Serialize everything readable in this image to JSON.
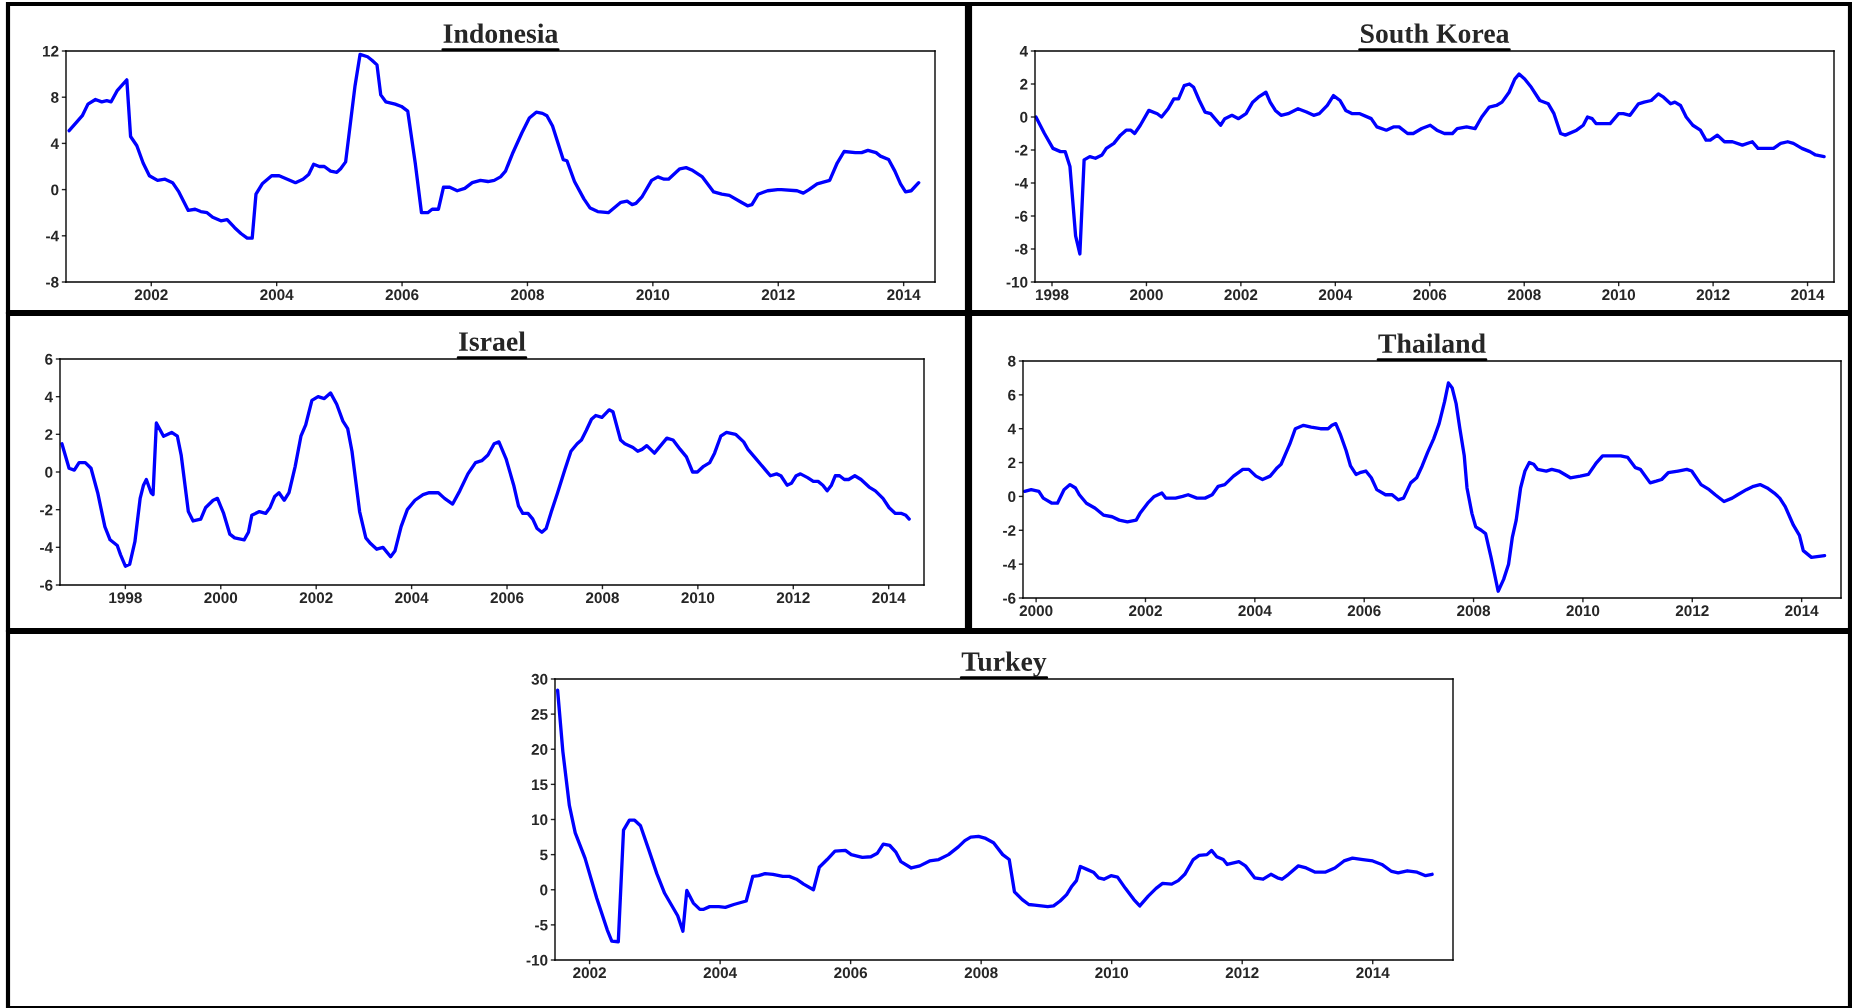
{
  "chart_data": [
    {
      "type": "line",
      "title": "Indonesia",
      "xlim": [
        2000.64,
        2014.5
      ],
      "ylim": [
        -8,
        12
      ],
      "xticks": [
        2002,
        2004,
        2006,
        2008,
        2010,
        2012,
        2014
      ],
      "yticks": [
        -8,
        -4,
        0,
        4,
        8,
        12
      ],
      "grid": false,
      "legend": false,
      "series": [
        {
          "color": "#0000ff",
          "x": [
            2000.69,
            2000.82,
            2000.9,
            2000.99,
            2001.11,
            2001.21,
            2001.29,
            2001.36,
            2001.46,
            2001.61,
            2001.67,
            2001.77,
            2001.87,
            2001.97,
            2002.1,
            2002.22,
            2002.34,
            2002.44,
            2002.59,
            2002.7,
            2002.79,
            2002.89,
            2002.98,
            2003.11,
            2003.21,
            2003.33,
            2003.43,
            2003.53,
            2003.61,
            2003.67,
            2003.77,
            2003.92,
            2004.04,
            2004.17,
            2004.3,
            2004.42,
            2004.51,
            2004.59,
            2004.68,
            2004.76,
            2004.86,
            2004.96,
            2005.02,
            2005.1,
            2005.25,
            2005.33,
            2005.45,
            2005.52,
            2005.6,
            2005.66,
            2005.74,
            2005.89,
            2005.99,
            2006.09,
            2006.21,
            2006.31,
            2006.41,
            2006.48,
            2006.58,
            2006.66,
            2006.76,
            2006.88,
            2007.0,
            2007.12,
            2007.25,
            2007.37,
            2007.47,
            2007.57,
            2007.65,
            2007.76,
            2007.91,
            2008.03,
            2008.14,
            2008.24,
            2008.31,
            2008.4,
            2008.57,
            2008.63,
            2008.75,
            2008.9,
            2009.0,
            2009.12,
            2009.29,
            2009.49,
            2009.59,
            2009.67,
            2009.73,
            2009.83,
            2009.98,
            2010.08,
            2010.18,
            2010.25,
            2010.43,
            2010.53,
            2010.62,
            2010.79,
            2010.97,
            2011.1,
            2011.22,
            2011.41,
            2011.51,
            2011.58,
            2011.68,
            2011.83,
            2011.99,
            2012.05,
            2012.3,
            2012.4,
            2012.49,
            2012.62,
            2012.82,
            2012.94,
            2013.05,
            2013.23,
            2013.33,
            2013.43,
            2013.56,
            2013.63,
            2013.76,
            2013.86,
            2013.95,
            2014.03,
            2014.12,
            2014.24
          ],
          "values": [
            5.1,
            5.9,
            6.4,
            7.4,
            7.8,
            7.6,
            7.7,
            7.6,
            8.6,
            9.5,
            4.6,
            3.8,
            2.3,
            1.2,
            0.8,
            0.9,
            0.6,
            -0.2,
            -1.8,
            -1.7,
            -1.9,
            -2.0,
            -2.4,
            -2.7,
            -2.6,
            -3.3,
            -3.8,
            -4.2,
            -4.2,
            -0.4,
            0.5,
            1.2,
            1.2,
            0.9,
            0.6,
            0.9,
            1.3,
            2.2,
            2.0,
            2.0,
            1.6,
            1.5,
            1.8,
            2.4,
            9.0,
            11.7,
            11.5,
            11.2,
            10.8,
            8.2,
            7.6,
            7.4,
            7.2,
            6.8,
            2.3,
            -2.0,
            -2.0,
            -1.7,
            -1.7,
            0.2,
            0.2,
            -0.1,
            0.1,
            0.6,
            0.8,
            0.7,
            0.8,
            1.1,
            1.6,
            3.1,
            4.9,
            6.2,
            6.7,
            6.6,
            6.4,
            5.5,
            2.6,
            2.5,
            0.7,
            -0.8,
            -1.6,
            -1.9,
            -2.0,
            -1.1,
            -1.0,
            -1.3,
            -1.2,
            -0.6,
            0.8,
            1.1,
            0.9,
            0.9,
            1.8,
            1.9,
            1.7,
            1.1,
            -0.2,
            -0.4,
            -0.5,
            -1.1,
            -1.4,
            -1.3,
            -0.4,
            -0.1,
            0.0,
            0.0,
            -0.1,
            -0.3,
            0.0,
            0.5,
            0.8,
            2.3,
            3.3,
            3.2,
            3.2,
            3.4,
            3.2,
            2.9,
            2.6,
            1.6,
            0.5,
            -0.2,
            -0.1,
            0.6
          ]
        }
      ]
    },
    {
      "type": "line",
      "title": "South Korea",
      "xlim": [
        1997.64,
        2014.56
      ],
      "ylim": [
        -10,
        4
      ],
      "xticks": [
        1998,
        2000,
        2002,
        2004,
        2006,
        2008,
        2010,
        2012,
        2014
      ],
      "yticks": [
        -10,
        -8,
        -6,
        -4,
        -2,
        0,
        2,
        4
      ],
      "grid": false,
      "legend": false,
      "series": [
        {
          "color": "#0000ff",
          "x": [
            1997.66,
            1997.84,
            1998.02,
            1998.18,
            1998.28,
            1998.38,
            1998.5,
            1998.59,
            1998.68,
            1998.8,
            1998.92,
            1999.06,
            1999.15,
            1999.31,
            1999.45,
            1999.57,
            1999.67,
            1999.75,
            1999.87,
            2000.05,
            2000.23,
            2000.32,
            2000.46,
            2000.58,
            2000.68,
            2000.8,
            2000.91,
            2001.0,
            2001.12,
            2001.24,
            2001.36,
            2001.57,
            2001.66,
            2001.81,
            2001.95,
            2002.11,
            2002.25,
            2002.37,
            2002.53,
            2002.62,
            2002.73,
            2002.85,
            2003.0,
            2003.21,
            2003.39,
            2003.54,
            2003.66,
            2003.83,
            2003.96,
            2004.1,
            2004.22,
            2004.36,
            2004.52,
            2004.76,
            2004.88,
            2005.08,
            2005.23,
            2005.35,
            2005.53,
            2005.65,
            2005.83,
            2006.01,
            2006.15,
            2006.31,
            2006.48,
            2006.58,
            2006.78,
            2006.96,
            2007.1,
            2007.26,
            2007.41,
            2007.53,
            2007.68,
            2007.8,
            2007.89,
            2008.01,
            2008.15,
            2008.33,
            2008.51,
            2008.63,
            2008.77,
            2008.87,
            2009.11,
            2009.25,
            2009.34,
            2009.44,
            2009.52,
            2009.64,
            2009.82,
            2010.0,
            2010.1,
            2010.24,
            2010.42,
            2010.54,
            2010.69,
            2010.84,
            2010.95,
            2011.1,
            2011.19,
            2011.31,
            2011.43,
            2011.57,
            2011.73,
            2011.85,
            2011.94,
            2012.09,
            2012.24,
            2012.41,
            2012.62,
            2012.83,
            2012.95,
            2013.1,
            2013.28,
            2013.43,
            2013.58,
            2013.7,
            2013.88,
            2014.05,
            2014.17,
            2014.35
          ],
          "values": [
            0.0,
            -1.0,
            -1.9,
            -2.1,
            -2.1,
            -3.0,
            -7.2,
            -8.3,
            -2.6,
            -2.4,
            -2.5,
            -2.3,
            -1.9,
            -1.6,
            -1.1,
            -0.8,
            -0.8,
            -1.0,
            -0.5,
            0.4,
            0.2,
            0.0,
            0.5,
            1.1,
            1.1,
            1.9,
            2.0,
            1.8,
            1.0,
            0.3,
            0.2,
            -0.5,
            -0.1,
            0.1,
            -0.1,
            0.2,
            0.9,
            1.2,
            1.5,
            0.9,
            0.4,
            0.1,
            0.2,
            0.5,
            0.3,
            0.1,
            0.2,
            0.7,
            1.3,
            1.0,
            0.4,
            0.2,
            0.2,
            -0.1,
            -0.6,
            -0.8,
            -0.6,
            -0.6,
            -1.0,
            -1.0,
            -0.7,
            -0.5,
            -0.8,
            -1.0,
            -1.0,
            -0.7,
            -0.6,
            -0.7,
            0.0,
            0.6,
            0.7,
            0.9,
            1.5,
            2.3,
            2.6,
            2.3,
            1.8,
            1.0,
            0.8,
            0.2,
            -1.0,
            -1.1,
            -0.8,
            -0.5,
            0.0,
            -0.1,
            -0.4,
            -0.4,
            -0.4,
            0.2,
            0.2,
            0.1,
            0.8,
            0.9,
            1.0,
            1.4,
            1.2,
            0.8,
            0.9,
            0.7,
            0.0,
            -0.5,
            -0.8,
            -1.4,
            -1.4,
            -1.1,
            -1.5,
            -1.5,
            -1.7,
            -1.5,
            -1.9,
            -1.9,
            -1.9,
            -1.6,
            -1.5,
            -1.6,
            -1.9,
            -2.1,
            -2.3,
            -2.4
          ]
        }
      ]
    },
    {
      "type": "line",
      "title": "Israel",
      "xlim": [
        1996.63,
        2014.74
      ],
      "ylim": [
        -6,
        6
      ],
      "xticks": [
        1998,
        2000,
        2002,
        2004,
        2006,
        2008,
        2010,
        2012,
        2014
      ],
      "yticks": [
        -6,
        -4,
        -2,
        0,
        2,
        4,
        6
      ],
      "grid": false,
      "legend": false,
      "series": [
        {
          "color": "#0000ff",
          "x": [
            1996.67,
            1996.82,
            1996.93,
            1997.03,
            1997.16,
            1997.28,
            1997.42,
            1997.57,
            1997.68,
            1997.83,
            1997.9,
            1998.0,
            1998.09,
            1998.2,
            1998.31,
            1998.38,
            1998.44,
            1998.54,
            1998.58,
            1998.65,
            1998.8,
            1998.97,
            1999.09,
            1999.17,
            1999.32,
            1999.42,
            1999.58,
            1999.68,
            1999.84,
            1999.93,
            2000.06,
            2000.19,
            2000.29,
            2000.49,
            2000.58,
            2000.65,
            2000.81,
            2000.94,
            2001.03,
            2001.13,
            2001.22,
            2001.33,
            2001.43,
            2001.56,
            2001.68,
            2001.78,
            2001.91,
            2002.04,
            2002.17,
            2002.3,
            2002.43,
            2002.56,
            2002.66,
            2002.75,
            2002.91,
            2003.04,
            2003.14,
            2003.27,
            2003.4,
            2003.56,
            2003.65,
            2003.78,
            2003.91,
            2004.07,
            2004.24,
            2004.37,
            2004.56,
            2004.69,
            2004.86,
            2005.01,
            2005.18,
            2005.34,
            2005.47,
            2005.6,
            2005.73,
            2005.83,
            2005.98,
            2006.14,
            2006.24,
            2006.33,
            2006.44,
            2006.54,
            2006.63,
            2006.73,
            2006.82,
            2006.93,
            2007.06,
            2007.21,
            2007.34,
            2007.47,
            2007.56,
            2007.66,
            2007.77,
            2007.86,
            2007.99,
            2008.14,
            2008.22,
            2008.38,
            2008.47,
            2008.64,
            2008.74,
            2008.83,
            2008.93,
            2009.09,
            2009.22,
            2009.35,
            2009.48,
            2009.63,
            2009.76,
            2009.89,
            2009.99,
            2010.12,
            2010.25,
            2010.35,
            2010.48,
            2010.6,
            2010.79,
            2010.96,
            2011.05,
            2011.22,
            2011.42,
            2011.52,
            2011.65,
            2011.74,
            2011.87,
            2011.96,
            2012.06,
            2012.15,
            2012.3,
            2012.42,
            2012.52,
            2012.62,
            2012.71,
            2012.8,
            2012.88,
            2012.97,
            2013.07,
            2013.16,
            2013.29,
            2013.42,
            2013.59,
            2013.72,
            2013.88,
            2014.01,
            2014.14,
            2014.27,
            2014.36,
            2014.43
          ],
          "values": [
            1.5,
            0.2,
            0.1,
            0.5,
            0.5,
            0.2,
            -1.1,
            -2.9,
            -3.6,
            -3.9,
            -4.4,
            -5.0,
            -4.9,
            -3.7,
            -1.4,
            -0.7,
            -0.4,
            -1.1,
            -1.2,
            2.6,
            1.9,
            2.1,
            1.9,
            0.9,
            -2.1,
            -2.6,
            -2.5,
            -1.9,
            -1.5,
            -1.4,
            -2.2,
            -3.3,
            -3.5,
            -3.6,
            -3.2,
            -2.3,
            -2.1,
            -2.2,
            -1.9,
            -1.3,
            -1.1,
            -1.5,
            -1.1,
            0.3,
            1.9,
            2.5,
            3.8,
            4.0,
            3.9,
            4.2,
            3.6,
            2.7,
            2.3,
            1.1,
            -2.1,
            -3.5,
            -3.8,
            -4.1,
            -4.0,
            -4.5,
            -4.2,
            -2.9,
            -2.0,
            -1.5,
            -1.2,
            -1.1,
            -1.1,
            -1.4,
            -1.7,
            -1.0,
            -0.1,
            0.5,
            0.6,
            0.9,
            1.5,
            1.6,
            0.7,
            -0.7,
            -1.8,
            -2.2,
            -2.2,
            -2.5,
            -3.0,
            -3.2,
            -3.0,
            -2.1,
            -1.1,
            0.1,
            1.1,
            1.5,
            1.7,
            2.2,
            2.8,
            3.0,
            2.9,
            3.3,
            3.2,
            1.7,
            1.5,
            1.3,
            1.1,
            1.2,
            1.4,
            1.0,
            1.4,
            1.8,
            1.7,
            1.2,
            0.8,
            0.0,
            0.0,
            0.3,
            0.5,
            1.0,
            1.9,
            2.1,
            2.0,
            1.6,
            1.2,
            0.7,
            0.1,
            -0.2,
            -0.1,
            -0.2,
            -0.7,
            -0.6,
            -0.2,
            -0.1,
            -0.3,
            -0.5,
            -0.5,
            -0.7,
            -1.0,
            -0.7,
            -0.2,
            -0.2,
            -0.4,
            -0.4,
            -0.2,
            -0.4,
            -0.8,
            -1.0,
            -1.4,
            -1.9,
            -2.2,
            -2.2,
            -2.3,
            -2.5
          ]
        }
      ]
    },
    {
      "type": "line",
      "title": "Thailand",
      "xlim": [
        1999.76,
        2014.72
      ],
      "ylim": [
        -6,
        8
      ],
      "xticks": [
        2000,
        2002,
        2004,
        2006,
        2008,
        2010,
        2012,
        2014
      ],
      "yticks": [
        -6,
        -4,
        -2,
        0,
        2,
        4,
        6,
        8
      ],
      "grid": false,
      "legend": false,
      "series": [
        {
          "color": "#0000ff",
          "x": [
            1999.79,
            1999.91,
            2000.05,
            2000.13,
            2000.29,
            2000.39,
            2000.51,
            2000.62,
            2000.72,
            2000.79,
            2000.92,
            2001.08,
            2001.23,
            2001.39,
            2001.52,
            2001.67,
            2001.83,
            2001.9,
            2002.04,
            2002.16,
            2002.3,
            2002.37,
            2002.55,
            2002.68,
            2002.78,
            2002.94,
            2003.09,
            2003.22,
            2003.33,
            2003.45,
            2003.61,
            2003.78,
            2003.89,
            2004.02,
            2004.14,
            2004.28,
            2004.41,
            2004.48,
            2004.64,
            2004.74,
            2004.89,
            2005.03,
            2005.2,
            2005.34,
            2005.41,
            2005.48,
            2005.56,
            2005.67,
            2005.75,
            2005.85,
            2005.92,
            2006.03,
            2006.13,
            2006.23,
            2006.39,
            2006.51,
            2006.62,
            2006.72,
            2006.85,
            2006.96,
            2007.06,
            2007.16,
            2007.27,
            2007.37,
            2007.47,
            2007.54,
            2007.61,
            2007.68,
            2007.75,
            2007.83,
            2007.88,
            2007.97,
            2008.04,
            2008.14,
            2008.22,
            2008.32,
            2008.45,
            2008.55,
            2008.64,
            2008.71,
            2008.78,
            2008.86,
            2008.94,
            2009.02,
            2009.1,
            2009.17,
            2009.33,
            2009.43,
            2009.56,
            2009.77,
            2009.95,
            2010.1,
            2010.25,
            2010.36,
            2010.51,
            2010.69,
            2010.82,
            2010.96,
            2011.05,
            2011.23,
            2011.34,
            2011.44,
            2011.56,
            2011.74,
            2011.9,
            2011.99,
            2012.16,
            2012.31,
            2012.42,
            2012.58,
            2012.73,
            2012.83,
            2012.99,
            2013.12,
            2013.24,
            2013.37,
            2013.5,
            2013.6,
            2013.7,
            2013.85,
            2013.96,
            2014.03,
            2014.18,
            2014.42
          ],
          "values": [
            0.3,
            0.4,
            0.3,
            -0.1,
            -0.4,
            -0.4,
            0.4,
            0.7,
            0.5,
            0.1,
            -0.4,
            -0.7,
            -1.1,
            -1.2,
            -1.4,
            -1.5,
            -1.4,
            -1.0,
            -0.4,
            0.0,
            0.2,
            -0.1,
            -0.1,
            0.0,
            0.1,
            -0.1,
            -0.1,
            0.1,
            0.6,
            0.7,
            1.2,
            1.6,
            1.6,
            1.2,
            1.0,
            1.2,
            1.7,
            1.9,
            3.1,
            4.0,
            4.2,
            4.1,
            4.0,
            4.0,
            4.2,
            4.3,
            3.7,
            2.7,
            1.8,
            1.3,
            1.4,
            1.5,
            1.1,
            0.4,
            0.1,
            0.1,
            -0.2,
            -0.1,
            0.8,
            1.1,
            1.8,
            2.6,
            3.4,
            4.3,
            5.6,
            6.7,
            6.4,
            5.5,
            4.0,
            2.4,
            0.5,
            -1.0,
            -1.8,
            -2.0,
            -2.2,
            -3.6,
            -5.6,
            -4.9,
            -4.0,
            -2.4,
            -1.4,
            0.5,
            1.5,
            2.0,
            1.9,
            1.6,
            1.5,
            1.6,
            1.5,
            1.1,
            1.2,
            1.3,
            2.0,
            2.4,
            2.4,
            2.4,
            2.3,
            1.7,
            1.6,
            0.8,
            0.9,
            1.0,
            1.4,
            1.5,
            1.6,
            1.5,
            0.7,
            0.4,
            0.1,
            -0.3,
            -0.1,
            0.1,
            0.4,
            0.6,
            0.7,
            0.5,
            0.2,
            -0.1,
            -0.6,
            -1.7,
            -2.3,
            -3.2,
            -3.6,
            -3.5
          ]
        }
      ]
    },
    {
      "type": "line",
      "title": "Turkey",
      "xlim": [
        2001.47,
        2015.23
      ],
      "ylim": [
        -10,
        30
      ],
      "xticks": [
        2002,
        2004,
        2006,
        2008,
        2010,
        2012,
        2014
      ],
      "yticks": [
        -10,
        -5,
        0,
        5,
        10,
        15,
        20,
        25,
        30
      ],
      "grid": false,
      "legend": false,
      "series": [
        {
          "color": "#0000ff",
          "x": [
            2001.51,
            2001.59,
            2001.69,
            2001.78,
            2001.93,
            2002.11,
            2002.27,
            2002.34,
            2002.44,
            2002.52,
            2002.61,
            2002.69,
            2002.78,
            2002.91,
            2003.03,
            2003.15,
            2003.35,
            2003.43,
            2003.49,
            2003.59,
            2003.69,
            2003.74,
            2003.84,
            2003.98,
            2004.08,
            2004.21,
            2004.4,
            2004.5,
            2004.59,
            2004.69,
            2004.81,
            2004.96,
            2005.06,
            2005.17,
            2005.28,
            2005.43,
            2005.52,
            2005.64,
            2005.76,
            2005.92,
            2006.01,
            2006.1,
            2006.18,
            2006.31,
            2006.41,
            2006.5,
            2006.6,
            2006.69,
            2006.77,
            2006.93,
            2007.06,
            2007.21,
            2007.35,
            2007.5,
            2007.65,
            2007.75,
            2007.84,
            2007.96,
            2008.07,
            2008.19,
            2008.33,
            2008.43,
            2008.51,
            2008.63,
            2008.73,
            2008.82,
            2008.92,
            2009.02,
            2009.11,
            2009.21,
            2009.31,
            2009.39,
            2009.46,
            2009.52,
            2009.62,
            2009.72,
            2009.8,
            2009.88,
            2009.99,
            2010.09,
            2010.21,
            2010.34,
            2010.43,
            2010.56,
            2010.68,
            2010.78,
            2010.92,
            2011.02,
            2011.12,
            2011.25,
            2011.34,
            2011.46,
            2011.53,
            2011.61,
            2011.71,
            2011.77,
            2011.95,
            2012.05,
            2012.19,
            2012.32,
            2012.44,
            2012.54,
            2012.61,
            2012.71,
            2012.86,
            2012.98,
            2013.12,
            2013.27,
            2013.42,
            2013.56,
            2013.69,
            2013.85,
            2014.0,
            2014.14,
            2014.29,
            2014.39,
            2014.53,
            2014.68,
            2014.81,
            2014.91
          ],
          "values": [
            28.4,
            19.7,
            12.0,
            8.1,
            4.5,
            -1.2,
            -5.7,
            -7.3,
            -7.4,
            8.5,
            9.9,
            9.9,
            9.1,
            5.6,
            2.3,
            -0.5,
            -3.7,
            -5.9,
            -0.1,
            -1.9,
            -2.8,
            -2.8,
            -2.4,
            -2.4,
            -2.5,
            -2.1,
            -1.6,
            1.9,
            2.0,
            2.3,
            2.2,
            1.9,
            1.9,
            1.5,
            0.8,
            0.0,
            3.2,
            4.3,
            5.5,
            5.6,
            5.0,
            4.8,
            4.6,
            4.7,
            5.2,
            6.5,
            6.3,
            5.4,
            4.0,
            3.1,
            3.4,
            4.1,
            4.3,
            5.0,
            6.1,
            7.0,
            7.5,
            7.6,
            7.3,
            6.7,
            5.0,
            4.3,
            -0.3,
            -1.4,
            -2.1,
            -2.2,
            -2.3,
            -2.4,
            -2.3,
            -1.6,
            -0.7,
            0.5,
            1.3,
            3.3,
            2.9,
            2.5,
            1.7,
            1.5,
            2.0,
            1.8,
            0.2,
            -1.4,
            -2.3,
            -0.9,
            0.2,
            0.9,
            0.8,
            1.3,
            2.2,
            4.3,
            4.9,
            5.0,
            5.6,
            4.7,
            4.3,
            3.6,
            4.0,
            3.4,
            1.7,
            1.5,
            2.2,
            1.7,
            1.5,
            2.2,
            3.4,
            3.1,
            2.5,
            2.5,
            3.1,
            4.1,
            4.5,
            4.3,
            4.1,
            3.6,
            2.6,
            2.4,
            2.7,
            2.5,
            2.0,
            2.2
          ]
        }
      ]
    }
  ]
}
